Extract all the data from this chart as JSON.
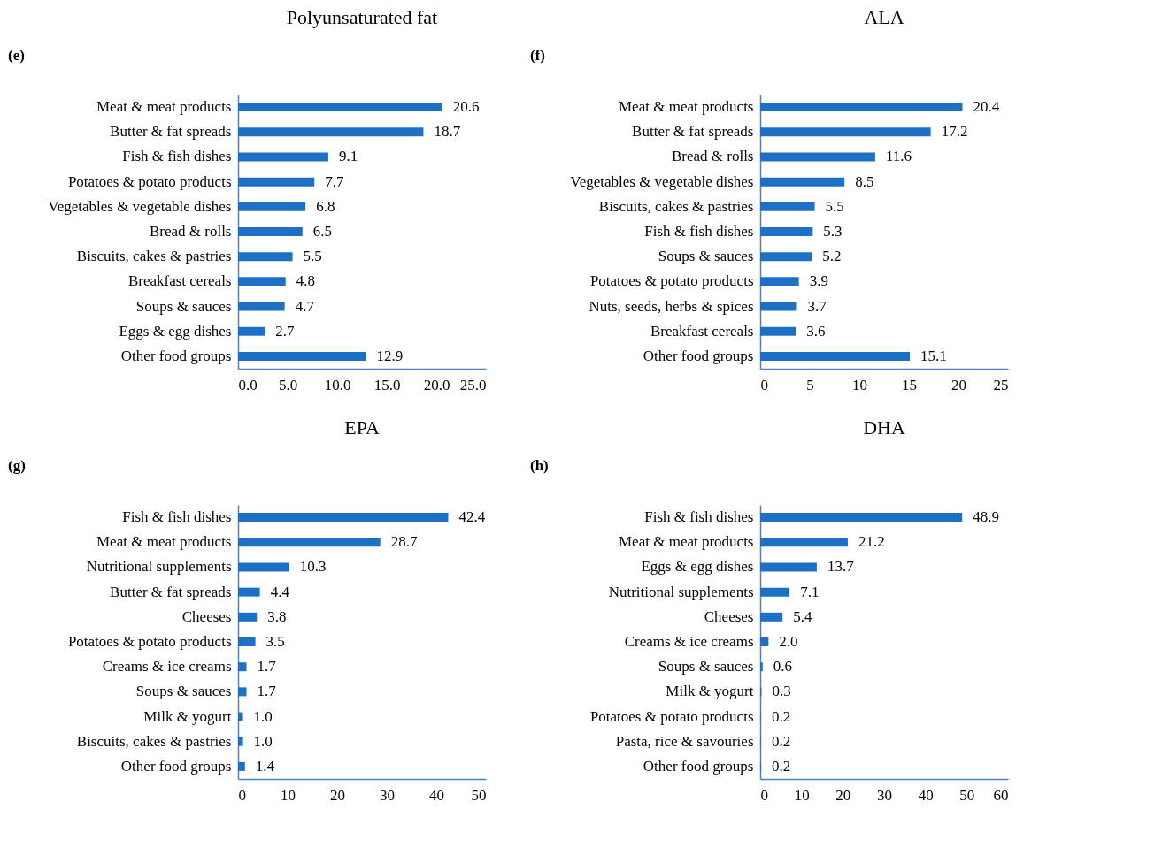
{
  "chart_data": [
    {
      "type": "bar",
      "orientation": "horizontal",
      "title": "Polyunsaturated fat",
      "annotations": [
        "(e)"
      ],
      "categories": [
        "Meat & meat products",
        "Butter & fat spreads",
        "Fish & fish dishes",
        "Potatoes & potato products",
        "Vegetables & vegetable dishes",
        "Bread & rolls",
        "Biscuits, cakes & pastries",
        "Breakfast cereals",
        "Soups & sauces",
        "Eggs & egg dishes",
        "Other food groups"
      ],
      "values": [
        20.6,
        18.7,
        9.1,
        7.7,
        6.8,
        6.5,
        5.5,
        4.8,
        4.7,
        2.7,
        12.9
      ],
      "value_labels": [
        "20.6",
        "18.7",
        "9.1",
        "7.7",
        "6.8",
        "6.5",
        "5.5",
        "4.8",
        "4.7",
        "2.7",
        "12.9"
      ],
      "color": "#1c71c7",
      "xlim": [
        0,
        25
      ],
      "xticks": [
        {
          "value": 0,
          "label": "0.0"
        },
        {
          "value": 5,
          "label": "5.0"
        },
        {
          "value": 10,
          "label": "10.0"
        },
        {
          "value": 15,
          "label": "15.0"
        },
        {
          "value": 20,
          "label": "20.0"
        },
        {
          "value": 25,
          "label": "25.0"
        }
      ],
      "grid": false
    },
    {
      "type": "bar",
      "orientation": "horizontal",
      "title": "ALA",
      "annotations": [
        "(f)"
      ],
      "categories": [
        "Meat & meat products",
        "Butter & fat spreads",
        "Bread & rolls",
        "Vegetables & vegetable dishes",
        "Biscuits, cakes & pastries",
        "Fish & fish dishes",
        "Soups & sauces",
        "Potatoes & potato products",
        "Nuts, seeds, herbs & spices",
        "Breakfast cereals",
        "Other food groups"
      ],
      "values": [
        20.4,
        17.2,
        11.6,
        8.5,
        5.5,
        5.3,
        5.2,
        3.9,
        3.7,
        3.6,
        15.1
      ],
      "value_labels": [
        "20.4",
        "17.2",
        "11.6",
        "8.5",
        "5.5",
        "5.3",
        "5.2",
        "3.9",
        "3.7",
        "3.6",
        "15.1"
      ],
      "color": "#1c71c7",
      "xlim": [
        0,
        25
      ],
      "xticks": [
        0,
        5,
        10,
        15,
        20,
        25
      ],
      "grid": false
    },
    {
      "type": "bar",
      "orientation": "horizontal",
      "title": "EPA",
      "annotations": [
        "(g)"
      ],
      "categories": [
        "Fish & fish dishes",
        "Meat & meat products",
        "Nutritional supplements",
        "Butter & fat spreads",
        "Cheeses",
        "Potatoes & potato products",
        "Creams & ice creams",
        "Soups & sauces",
        "Milk & yogurt",
        "Biscuits, cakes & pastries",
        "Other food groups"
      ],
      "values": [
        42.4,
        28.7,
        10.3,
        4.4,
        3.8,
        3.5,
        1.7,
        1.7,
        1.0,
        1.0,
        1.4
      ],
      "value_labels": [
        "42.4",
        "28.7",
        "10.3",
        "4.4",
        "3.8",
        "3.5",
        "1.7",
        "1.7",
        "1.0",
        "1.0",
        "1.4"
      ],
      "color": "#1c71c7",
      "xlim": [
        0,
        50
      ],
      "xticks": [
        0,
        10,
        20,
        30,
        40,
        50
      ],
      "grid": false
    },
    {
      "type": "bar",
      "orientation": "horizontal",
      "title": "DHA",
      "annotations": [
        "(h)"
      ],
      "categories": [
        "Fish & fish dishes",
        "Meat & meat products",
        "Eggs & egg dishes",
        "Nutritional supplements",
        "Cheeses",
        "Creams & ice creams",
        "Soups & sauces",
        "Milk & yogurt",
        "Potatoes & potato products",
        "Pasta, rice & savouries",
        "Other food groups"
      ],
      "values": [
        48.9,
        21.2,
        13.7,
        7.1,
        5.4,
        2.0,
        0.6,
        0.3,
        0.2,
        0.2,
        0.2
      ],
      "value_labels": [
        "48.9",
        "21.2",
        "13.7",
        "7.1",
        "5.4",
        "2.0",
        "0.6",
        "0.3",
        "0.2",
        "0.2",
        "0.2"
      ],
      "color": "#1c71c7",
      "xlim": [
        0,
        60
      ],
      "xticks": [
        0,
        10,
        20,
        30,
        40,
        50,
        60
      ],
      "grid": false
    }
  ]
}
